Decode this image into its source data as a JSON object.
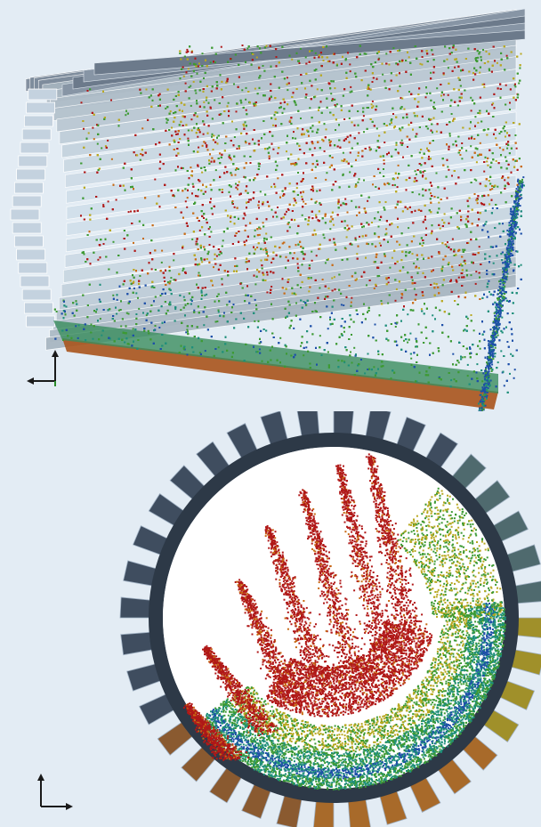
{
  "image": {
    "description_none": "",
    "palette": {
      "background": "#e3ecf4",
      "shell_light": "#c9d6e2",
      "shell_dark": "#3e4b5c",
      "particle_red": "#b01818",
      "particle_orange": "#c86a14",
      "particle_yellow": "#b8a820",
      "particle_green": "#3d9a33",
      "particle_teal": "#1f8f7a",
      "particle_blue": "#1d4fa8",
      "axis_color": "#1a1a1a"
    },
    "views": [
      {
        "name": "side-view",
        "camera": "oblique-side"
      },
      {
        "name": "end-view",
        "camera": "axial"
      }
    ],
    "icons": [
      "axis-triad-icon",
      "axis-triad-icon"
    ]
  }
}
